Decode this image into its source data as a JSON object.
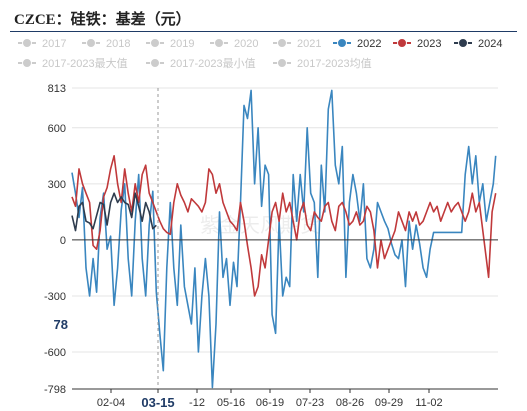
{
  "title": "CZCE：硅铁：基差（元）",
  "watermark": "紫金天风期货",
  "legend": [
    {
      "name": "2017",
      "color": "#cccccc",
      "active": false
    },
    {
      "name": "2018",
      "color": "#cccccc",
      "active": false
    },
    {
      "name": "2019",
      "color": "#cccccc",
      "active": false
    },
    {
      "name": "2020",
      "color": "#cccccc",
      "active": false
    },
    {
      "name": "2021",
      "color": "#cccccc",
      "active": false
    },
    {
      "name": "2022",
      "color": "#3a86bf",
      "active": true
    },
    {
      "name": "2023",
      "color": "#c0393b",
      "active": true
    },
    {
      "name": "2024",
      "color": "#2e3c4e",
      "active": true
    },
    {
      "name": "2017-2023最大值",
      "color": "#cccccc",
      "active": false
    },
    {
      "name": "2017-2023最小值",
      "color": "#cccccc",
      "active": false
    },
    {
      "name": "2017-2023均值",
      "color": "#cccccc",
      "active": false
    }
  ],
  "hover": {
    "x_label": "03-15",
    "y_label": "78"
  },
  "chart_data": {
    "type": "line",
    "x_ticks": [
      "02-04",
      "03-15",
      "-12",
      "05-16",
      "06-19",
      "07-23",
      "08-26",
      "09-29",
      "11-02"
    ],
    "y_ticks": [
      813,
      600,
      300,
      0,
      -300,
      -600,
      -798
    ],
    "ylim": [
      -798,
      813
    ],
    "x_range": [
      1,
      365
    ],
    "grid": "horizontal",
    "legend_position": "top",
    "series": [
      {
        "name": "2022",
        "color": "#3a86bf",
        "points": [
          [
            1,
            360
          ],
          [
            4,
            250
          ],
          [
            7,
            120
          ],
          [
            10,
            280
          ],
          [
            13,
            -150
          ],
          [
            16,
            -300
          ],
          [
            19,
            -100
          ],
          [
            22,
            -280
          ],
          [
            25,
            120
          ],
          [
            28,
            250
          ],
          [
            31,
            -50
          ],
          [
            34,
            20
          ],
          [
            37,
            -350
          ],
          [
            40,
            -150
          ],
          [
            43,
            160
          ],
          [
            46,
            300
          ],
          [
            49,
            -100
          ],
          [
            52,
            -300
          ],
          [
            55,
            100
          ],
          [
            58,
            350
          ],
          [
            61,
            -100
          ],
          [
            64,
            -300
          ],
          [
            67,
            80
          ],
          [
            70,
            260
          ],
          [
            73,
            -280
          ],
          [
            76,
            -500
          ],
          [
            79,
            -700
          ],
          [
            82,
            -150
          ],
          [
            85,
            200
          ],
          [
            88,
            -150
          ],
          [
            91,
            -350
          ],
          [
            94,
            80
          ],
          [
            97,
            -250
          ],
          [
            100,
            -350
          ],
          [
            103,
            -450
          ],
          [
            106,
            -150
          ],
          [
            109,
            -600
          ],
          [
            112,
            -300
          ],
          [
            115,
            -100
          ],
          [
            118,
            -300
          ],
          [
            121,
            -790
          ],
          [
            124,
            -450
          ],
          [
            127,
            150
          ],
          [
            130,
            -200
          ],
          [
            133,
            -100
          ],
          [
            136,
            -350
          ],
          [
            139,
            -120
          ],
          [
            142,
            -250
          ],
          [
            145,
            200
          ],
          [
            148,
            720
          ],
          [
            151,
            650
          ],
          [
            154,
            800
          ],
          [
            157,
            300
          ],
          [
            160,
            600
          ],
          [
            163,
            180
          ],
          [
            166,
            400
          ],
          [
            169,
            350
          ],
          [
            172,
            -400
          ],
          [
            175,
            -500
          ],
          [
            178,
            100
          ],
          [
            181,
            -300
          ],
          [
            184,
            -200
          ],
          [
            187,
            -250
          ],
          [
            190,
            350
          ],
          [
            193,
            100
          ],
          [
            196,
            350
          ],
          [
            199,
            150
          ],
          [
            202,
            600
          ],
          [
            205,
            250
          ],
          [
            208,
            200
          ],
          [
            211,
            -200
          ],
          [
            214,
            400
          ],
          [
            217,
            150
          ],
          [
            220,
            700
          ],
          [
            223,
            800
          ],
          [
            226,
            400
          ],
          [
            229,
            300
          ],
          [
            232,
            500
          ],
          [
            235,
            -200
          ],
          [
            238,
            200
          ],
          [
            241,
            350
          ],
          [
            244,
            250
          ],
          [
            247,
            100
          ],
          [
            250,
            300
          ],
          [
            253,
            -100
          ],
          [
            256,
            -150
          ],
          [
            259,
            -50
          ],
          [
            262,
            200
          ],
          [
            265,
            150
          ],
          [
            268,
            100
          ],
          [
            271,
            60
          ],
          [
            274,
            -20
          ],
          [
            277,
            -80
          ],
          [
            280,
            -100
          ],
          [
            283,
            0
          ],
          [
            286,
            -250
          ],
          [
            289,
            100
          ],
          [
            292,
            -50
          ],
          [
            295,
            80
          ],
          [
            298,
            -20
          ],
          [
            301,
            -150
          ],
          [
            304,
            -200
          ],
          [
            307,
            -50
          ],
          [
            310,
            40
          ],
          [
            313,
            40
          ],
          [
            316,
            40
          ],
          [
            319,
            40
          ],
          [
            322,
            40
          ],
          [
            325,
            40
          ],
          [
            328,
            40
          ],
          [
            331,
            40
          ],
          [
            334,
            40
          ],
          [
            337,
            350
          ],
          [
            340,
            500
          ],
          [
            343,
            300
          ],
          [
            346,
            450
          ],
          [
            349,
            200
          ],
          [
            352,
            300
          ],
          [
            355,
            100
          ],
          [
            358,
            200
          ],
          [
            361,
            300
          ],
          [
            363,
            450
          ]
        ]
      },
      {
        "name": "2023",
        "color": "#c0393b",
        "points": [
          [
            1,
            230
          ],
          [
            4,
            180
          ],
          [
            7,
            380
          ],
          [
            10,
            300
          ],
          [
            13,
            250
          ],
          [
            16,
            200
          ],
          [
            19,
            -30
          ],
          [
            22,
            -50
          ],
          [
            25,
            50
          ],
          [
            28,
            230
          ],
          [
            31,
            280
          ],
          [
            34,
            380
          ],
          [
            37,
            450
          ],
          [
            40,
            300
          ],
          [
            43,
            200
          ],
          [
            46,
            380
          ],
          [
            49,
            250
          ],
          [
            52,
            150
          ],
          [
            55,
            300
          ],
          [
            58,
            200
          ],
          [
            61,
            350
          ],
          [
            64,
            400
          ],
          [
            67,
            250
          ],
          [
            70,
            200
          ],
          [
            73,
            150
          ],
          [
            76,
            100
          ],
          [
            79,
            60
          ],
          [
            82,
            40
          ],
          [
            85,
            30
          ],
          [
            88,
            200
          ],
          [
            91,
            300
          ],
          [
            94,
            240
          ],
          [
            97,
            200
          ],
          [
            100,
            150
          ],
          [
            103,
            220
          ],
          [
            106,
            200
          ],
          [
            109,
            180
          ],
          [
            112,
            150
          ],
          [
            115,
            200
          ],
          [
            118,
            380
          ],
          [
            121,
            350
          ],
          [
            124,
            250
          ],
          [
            127,
            300
          ],
          [
            130,
            200
          ],
          [
            133,
            150
          ],
          [
            136,
            100
          ],
          [
            139,
            80
          ],
          [
            142,
            50
          ],
          [
            145,
            200
          ],
          [
            148,
            100
          ],
          [
            151,
            -30
          ],
          [
            154,
            -150
          ],
          [
            157,
            -300
          ],
          [
            160,
            -250
          ],
          [
            163,
            -80
          ],
          [
            166,
            -150
          ],
          [
            169,
            0
          ],
          [
            172,
            150
          ],
          [
            175,
            200
          ],
          [
            178,
            100
          ],
          [
            181,
            250
          ],
          [
            184,
            150
          ],
          [
            187,
            200
          ],
          [
            190,
            100
          ],
          [
            193,
            0
          ],
          [
            196,
            150
          ],
          [
            199,
            200
          ],
          [
            202,
            80
          ],
          [
            205,
            50
          ],
          [
            208,
            150
          ],
          [
            211,
            120
          ],
          [
            214,
            100
          ],
          [
            217,
            180
          ],
          [
            220,
            200
          ],
          [
            223,
            100
          ],
          [
            226,
            50
          ],
          [
            229,
            180
          ],
          [
            232,
            200
          ],
          [
            235,
            150
          ],
          [
            238,
            80
          ],
          [
            241,
            100
          ],
          [
            244,
            150
          ],
          [
            247,
            80
          ],
          [
            250,
            100
          ],
          [
            253,
            180
          ],
          [
            256,
            150
          ],
          [
            259,
            50
          ],
          [
            262,
            -150
          ],
          [
            265,
            0
          ],
          [
            268,
            -100
          ],
          [
            271,
            -50
          ],
          [
            274,
            0
          ],
          [
            277,
            50
          ],
          [
            280,
            150
          ],
          [
            283,
            100
          ],
          [
            286,
            50
          ],
          [
            289,
            150
          ],
          [
            292,
            100
          ],
          [
            295,
            150
          ],
          [
            298,
            80
          ],
          [
            301,
            100
          ],
          [
            304,
            150
          ],
          [
            307,
            200
          ],
          [
            310,
            150
          ],
          [
            313,
            180
          ],
          [
            316,
            100
          ],
          [
            319,
            150
          ],
          [
            322,
            200
          ],
          [
            325,
            150
          ],
          [
            328,
            180
          ],
          [
            331,
            200
          ],
          [
            334,
            150
          ],
          [
            337,
            100
          ],
          [
            340,
            150
          ],
          [
            343,
            250
          ],
          [
            346,
            150
          ],
          [
            349,
            200
          ],
          [
            352,
            50
          ],
          [
            355,
            -100
          ],
          [
            357,
            -200
          ],
          [
            360,
            150
          ],
          [
            363,
            250
          ]
        ]
      },
      {
        "name": "2024",
        "color": "#2e3c4e",
        "points": [
          [
            1,
            130
          ],
          [
            4,
            50
          ],
          [
            7,
            180
          ],
          [
            10,
            200
          ],
          [
            13,
            100
          ],
          [
            16,
            90
          ],
          [
            19,
            60
          ],
          [
            22,
            130
          ],
          [
            25,
            200
          ],
          [
            28,
            190
          ],
          [
            31,
            80
          ],
          [
            34,
            200
          ],
          [
            37,
            250
          ],
          [
            40,
            200
          ],
          [
            43,
            230
          ],
          [
            46,
            200
          ],
          [
            49,
            190
          ],
          [
            52,
            120
          ],
          [
            55,
            250
          ],
          [
            58,
            180
          ],
          [
            61,
            100
          ],
          [
            64,
            200
          ],
          [
            67,
            150
          ],
          [
            70,
            60
          ],
          [
            73,
            78
          ]
        ]
      }
    ]
  }
}
